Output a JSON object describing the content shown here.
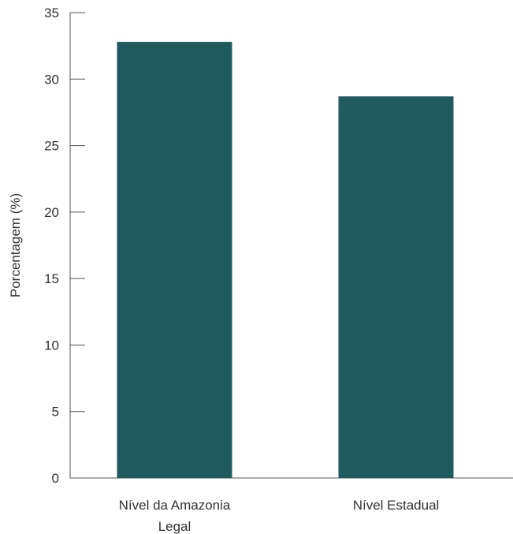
{
  "chart_data": {
    "type": "bar",
    "title": "",
    "xlabel": "",
    "ylabel": "Porcentagem (%)",
    "categories": [
      [
        "Nível da Amazonia",
        "Legal"
      ],
      [
        "Nível Estadual"
      ]
    ],
    "values": [
      32.8,
      28.7
    ],
    "ylim": [
      0,
      35
    ],
    "yticks": [
      0,
      5,
      10,
      15,
      20,
      25,
      30,
      35
    ],
    "grid": false,
    "legend": "none",
    "bar_color": "#1f5a5e"
  }
}
